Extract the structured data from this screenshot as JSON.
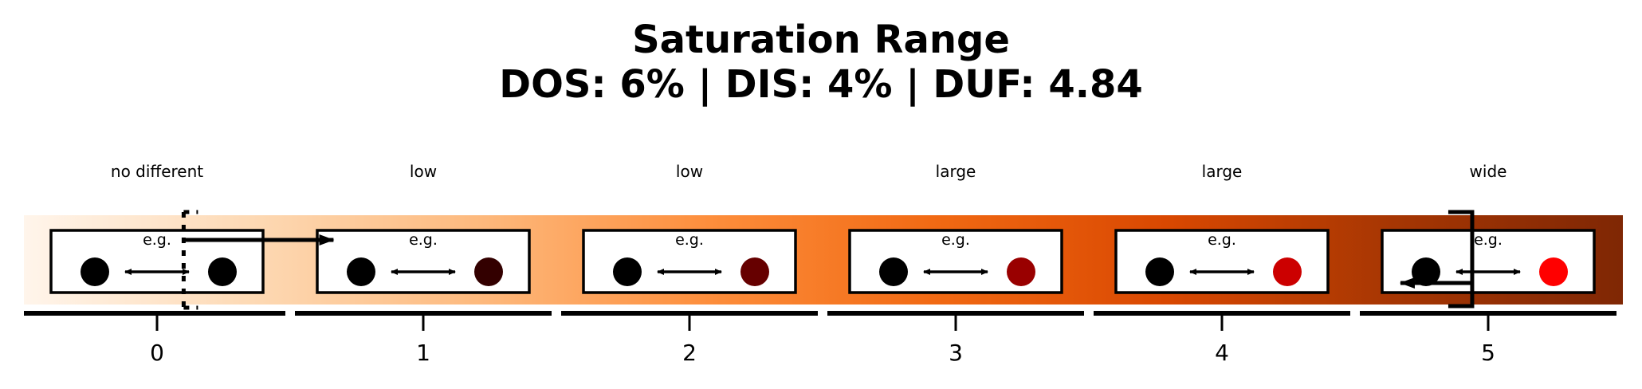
{
  "title": {
    "line1": "Saturation Range",
    "line2": "DOS: 6% | DIS: 4% | DUF: 4.84"
  },
  "scale": {
    "ticks": [
      "0",
      "1",
      "2",
      "3",
      "4",
      "5"
    ],
    "levels": [
      "no different",
      "low",
      "low",
      "large",
      "large",
      "wide"
    ],
    "example_label": "e.g.",
    "example_colors": [
      "#000000",
      "#330000",
      "#660000",
      "#990000",
      "#cc0000",
      "#ff0000"
    ]
  },
  "markers": {
    "dos_position": 0.1,
    "dis_position": 4.94
  },
  "colors": {
    "gradient": [
      "#fff5eb",
      "#fdd9b4",
      "#fdb97d",
      "#fd8e3c",
      "#f16913",
      "#d94801",
      "#a63603",
      "#7f2704"
    ]
  }
}
